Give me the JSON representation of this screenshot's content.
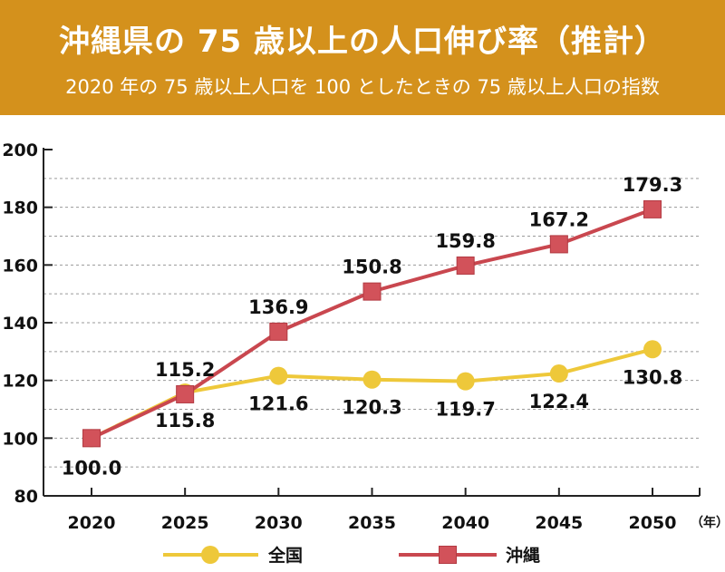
{
  "header": {
    "title": "沖縄県の 75 歳以上の人口伸び率（推計）",
    "subtitle": "2020 年の 75 歳以上人口を 100 としたときの 75 歳以上人口の指数"
  },
  "colors": {
    "header_bg": "#d4911c",
    "national": "#eec83a",
    "okinawa": "#c9474f",
    "okinawa_marker": "#d2525a"
  },
  "chart_data": {
    "type": "line",
    "title": "沖縄県の 75 歳以上の人口伸び率（推計）",
    "subtitle": "2020 年の 75 歳以上人口を 100 としたときの 75 歳以上人口の指数",
    "x": [
      2020,
      2025,
      2030,
      2035,
      2040,
      2045,
      2050
    ],
    "x_unit": "（年）",
    "ylim": [
      80,
      200
    ],
    "yticks": [
      80,
      100,
      120,
      140,
      160,
      180,
      200
    ],
    "grid": "dashed horizontal",
    "legend_position": "bottom",
    "series": [
      {
        "name": "全国",
        "marker": "circle",
        "color": "#eec83a",
        "values": [
          100.0,
          115.8,
          121.6,
          120.3,
          119.7,
          122.4,
          130.8
        ],
        "labels": [
          "",
          "115.8",
          "121.6",
          "120.3",
          "119.7",
          "122.4",
          "130.8"
        ]
      },
      {
        "name": "沖縄",
        "marker": "square",
        "color": "#c9474f",
        "values": [
          100.0,
          115.2,
          136.9,
          150.8,
          159.8,
          167.2,
          179.3
        ],
        "labels": [
          "100.0",
          "115.2",
          "136.9",
          "150.8",
          "159.8",
          "167.2",
          "179.3"
        ]
      }
    ]
  }
}
